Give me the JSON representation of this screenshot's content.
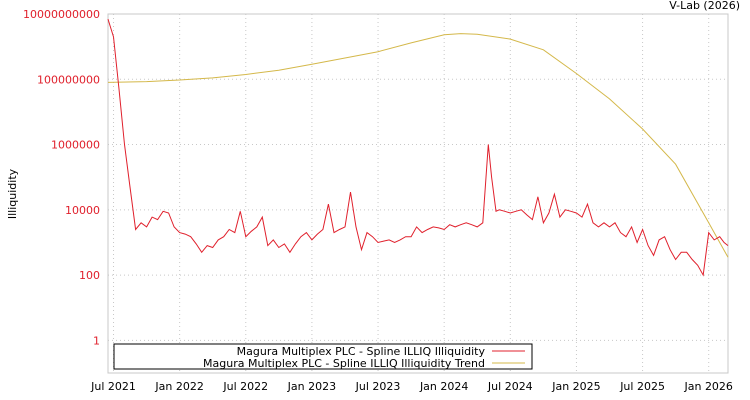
{
  "chart_data": {
    "type": "line",
    "credit": "V-Lab (2026)",
    "ylabel": "Illiquidity",
    "yscale": "log",
    "ylim": [
      0.1,
      10000000000
    ],
    "yticks": [
      {
        "v": 10000000000,
        "label": "10000000000"
      },
      {
        "v": 100000000,
        "label": "100000000"
      },
      {
        "v": 1000000,
        "label": "1000000"
      },
      {
        "v": 10000,
        "label": "10000"
      },
      {
        "v": 100,
        "label": "100"
      },
      {
        "v": 1,
        "label": "1"
      }
    ],
    "x_unit": "months since Jul 2021",
    "xlim": [
      -0.5,
      55.75
    ],
    "xticks": [
      {
        "v": 0,
        "label": "Jul 2021"
      },
      {
        "v": 6,
        "label": "Jan 2022"
      },
      {
        "v": 12,
        "label": "Jul 2022"
      },
      {
        "v": 18,
        "label": "Jan 2023"
      },
      {
        "v": 24,
        "label": "Jul 2023"
      },
      {
        "v": 30,
        "label": "Jan 2024"
      },
      {
        "v": 36,
        "label": "Jul 2024"
      },
      {
        "v": 42,
        "label": "Jan 2025"
      },
      {
        "v": 48,
        "label": "Jul 2025"
      },
      {
        "v": 54,
        "label": "Jan 2026"
      }
    ],
    "grid": true,
    "legend_position": "bottom",
    "series": [
      {
        "name": "Magura Multiplex PLC - Spline ILLIQ Illiquidity",
        "color": "#e0202c",
        "points": [
          [
            -0.5,
            7000000000.0
          ],
          [
            0,
            2000000000.0
          ],
          [
            0.5,
            50000000.0
          ],
          [
            1,
            1000000.0
          ],
          [
            1.5,
            50000.0
          ],
          [
            2,
            2500
          ],
          [
            2.5,
            4000
          ],
          [
            3,
            3000
          ],
          [
            3.5,
            6000
          ],
          [
            4,
            5000
          ],
          [
            4.5,
            9000
          ],
          [
            5,
            8000
          ],
          [
            5.5,
            3000
          ],
          [
            6,
            2000
          ],
          [
            6.5,
            1800
          ],
          [
            7,
            1500
          ],
          [
            7.5,
            900
          ],
          [
            8,
            500
          ],
          [
            8.5,
            800
          ],
          [
            9,
            700
          ],
          [
            9.5,
            1200
          ],
          [
            10,
            1500
          ],
          [
            10.5,
            2500
          ],
          [
            11,
            2000
          ],
          [
            11.5,
            9000
          ],
          [
            12,
            1500
          ],
          [
            12.5,
            2200
          ],
          [
            13,
            3000
          ],
          [
            13.5,
            6000
          ],
          [
            14,
            800
          ],
          [
            14.5,
            1200
          ],
          [
            15,
            700
          ],
          [
            15.5,
            900
          ],
          [
            16,
            500
          ],
          [
            16.5,
            900
          ],
          [
            17,
            1500
          ],
          [
            17.5,
            2000
          ],
          [
            18,
            1200
          ],
          [
            18.5,
            1800
          ],
          [
            19,
            2500
          ],
          [
            19.5,
            15000
          ],
          [
            20,
            2000
          ],
          [
            20.5,
            2500
          ],
          [
            21,
            3000
          ],
          [
            21.5,
            35000
          ],
          [
            22,
            3000
          ],
          [
            22.5,
            600
          ],
          [
            23,
            2000
          ],
          [
            23.5,
            1500
          ],
          [
            24,
            1000
          ],
          [
            24.5,
            1100
          ],
          [
            25,
            1200
          ],
          [
            25.5,
            1000
          ],
          [
            26,
            1200
          ],
          [
            26.5,
            1500
          ],
          [
            27,
            1500
          ],
          [
            27.5,
            3000
          ],
          [
            28,
            2000
          ],
          [
            28.5,
            2500
          ],
          [
            29,
            3000
          ],
          [
            29.5,
            2800
          ],
          [
            30,
            2500
          ],
          [
            30.5,
            3500
          ],
          [
            31,
            3000
          ],
          [
            31.5,
            3500
          ],
          [
            32,
            4000
          ],
          [
            32.5,
            3500
          ],
          [
            33,
            3000
          ],
          [
            33.5,
            4000
          ],
          [
            34,
            1000000.0
          ],
          [
            34.3,
            100000.0
          ],
          [
            34.7,
            9000
          ],
          [
            35,
            10000
          ],
          [
            35.5,
            9000
          ],
          [
            36,
            8000
          ],
          [
            36.5,
            9000
          ],
          [
            37,
            10000
          ],
          [
            37.5,
            7000
          ],
          [
            38,
            5000
          ],
          [
            38.5,
            25000
          ],
          [
            39,
            4000
          ],
          [
            39.5,
            8000
          ],
          [
            40,
            30000
          ],
          [
            40.5,
            6000
          ],
          [
            41,
            10000
          ],
          [
            41.5,
            9000
          ],
          [
            42,
            8000
          ],
          [
            42.5,
            6000
          ],
          [
            43,
            15000
          ],
          [
            43.5,
            4000
          ],
          [
            44,
            3000
          ],
          [
            44.5,
            4000
          ],
          [
            45,
            3000
          ],
          [
            45.5,
            4000
          ],
          [
            46,
            2000
          ],
          [
            46.5,
            1500
          ],
          [
            47,
            3000
          ],
          [
            47.5,
            1000
          ],
          [
            48,
            2500
          ],
          [
            48.5,
            800
          ],
          [
            49,
            400
          ],
          [
            49.5,
            1200
          ],
          [
            50,
            1500
          ],
          [
            50.5,
            600
          ],
          [
            51,
            300
          ],
          [
            51.5,
            500
          ],
          [
            52,
            500
          ],
          [
            52.5,
            300
          ],
          [
            53,
            200
          ],
          [
            53.5,
            100
          ],
          [
            54,
            2000
          ],
          [
            54.5,
            1200
          ],
          [
            55,
            1500
          ],
          [
            55.4,
            1000
          ],
          [
            55.75,
            800
          ]
        ]
      },
      {
        "name": "Magura Multiplex PLC - Spline ILLIQ Illiquidity Trend",
        "color": "#d4b84a",
        "points": [
          [
            -0.5,
            80000000.0
          ],
          [
            3,
            85000000.0
          ],
          [
            6,
            95000000.0
          ],
          [
            9,
            110000000.0
          ],
          [
            12,
            140000000.0
          ],
          [
            15,
            190000000.0
          ],
          [
            18,
            290000000.0
          ],
          [
            21,
            450000000.0
          ],
          [
            24,
            700000000.0
          ],
          [
            27,
            1300000000.0
          ],
          [
            30,
            2300000000.0
          ],
          [
            31.5,
            2500000000.0
          ],
          [
            33,
            2400000000.0
          ],
          [
            36,
            1700000000.0
          ],
          [
            39,
            800000000.0
          ],
          [
            42,
            150000000.0
          ],
          [
            45,
            25000000.0
          ],
          [
            48,
            3000000.0
          ],
          [
            51,
            250000.0
          ],
          [
            54,
            4000
          ],
          [
            55.75,
            350
          ]
        ]
      }
    ]
  }
}
